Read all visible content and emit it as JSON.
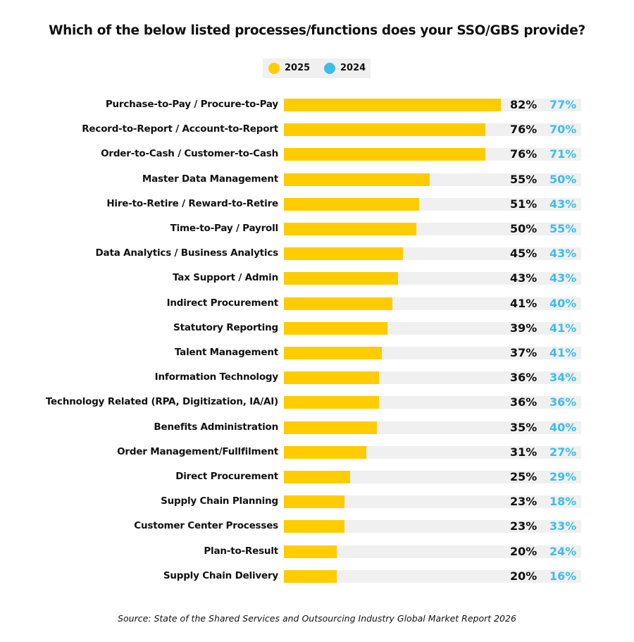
{
  "chart_data": {
    "type": "bar",
    "orientation": "horizontal",
    "title": "Which of the below listed processes/functions does your SSO/GBS provide?",
    "source": "Source: State of the Shared Services and Outsourcing Industry Global Market Report 2026",
    "legend": {
      "placement": "top-center",
      "entries": [
        "2025",
        "2024"
      ]
    },
    "colors": {
      "2025": "#FFCC00",
      "2024": "#3DBDEA",
      "track": "#F0F0F0"
    },
    "xlim": [
      0,
      100
    ],
    "grid": false,
    "categories": [
      "Purchase-to-Pay / Procure-to-Pay",
      "Record-to-Report / Account-to-Report",
      "Order-to-Cash / Customer-to-Cash",
      "Master Data Management",
      "Hire-to-Retire / Reward-to-Retire",
      "Time-to-Pay / Payroll",
      "Data Analytics / Business Analytics",
      "Tax Support / Admin",
      "Indirect Procurement",
      "Statutory Reporting",
      "Talent Management",
      "Information Technology",
      "Technology Related (RPA, Digitization, IA/AI)",
      "Benefits Administration",
      "Order Management/Fullfilment",
      "Direct Procurement",
      "Supply Chain Planning",
      "Customer Center Processes",
      "Plan-to-Result",
      "Supply Chain Delivery"
    ],
    "series": [
      {
        "name": "2025",
        "values": [
          82,
          76,
          76,
          55,
          51,
          50,
          45,
          43,
          41,
          39,
          37,
          36,
          36,
          35,
          31,
          25,
          23,
          23,
          20,
          20
        ]
      },
      {
        "name": "2024",
        "values": [
          77,
          70,
          71,
          50,
          43,
          55,
          43,
          43,
          40,
          41,
          41,
          34,
          36,
          40,
          27,
          29,
          18,
          33,
          24,
          16
        ]
      }
    ]
  }
}
